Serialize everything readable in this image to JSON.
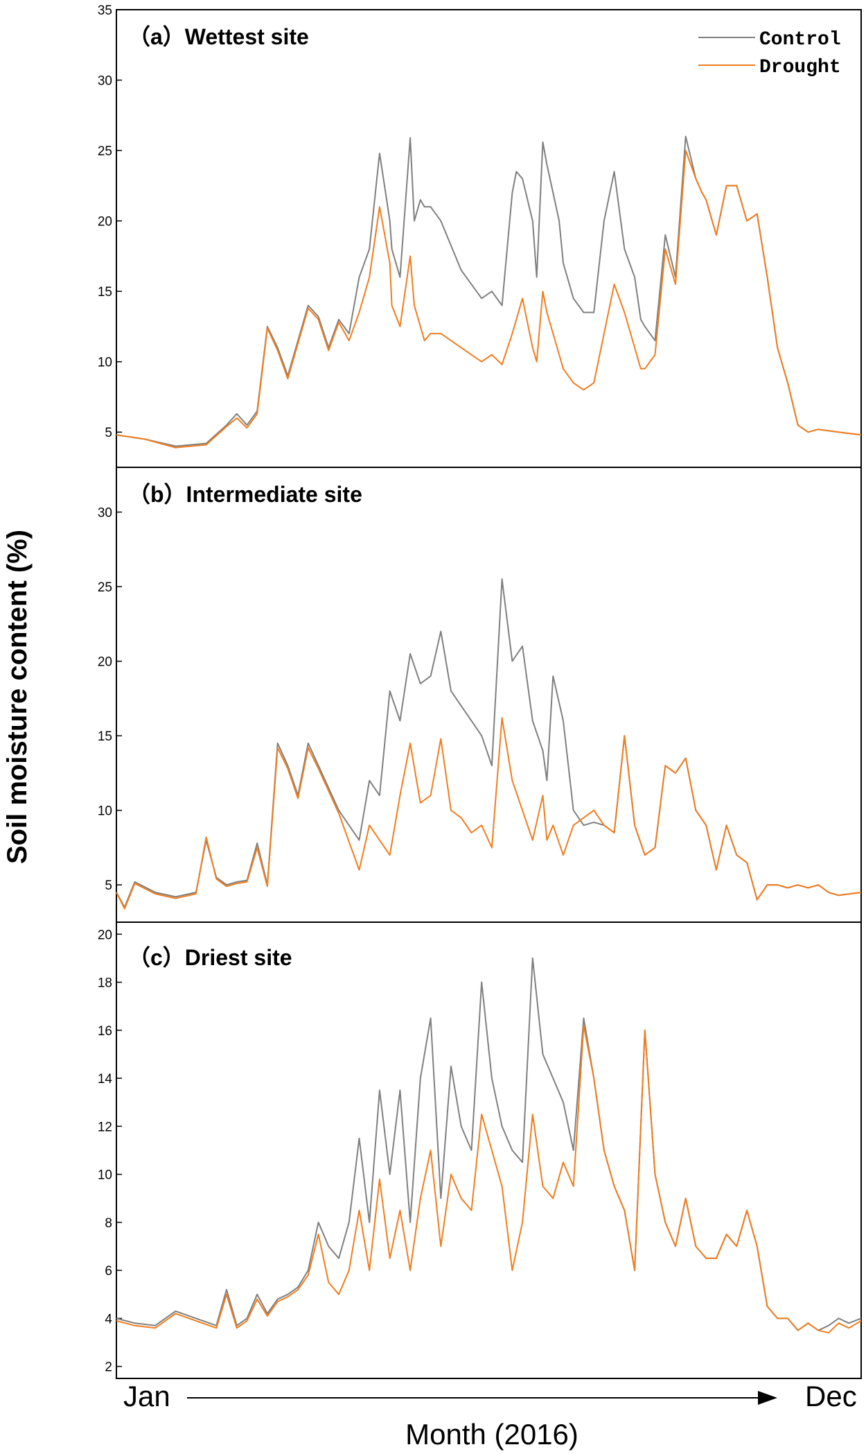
{
  "chart_data": {
    "type": "line",
    "ylabel": "Soil moisture content (%)",
    "xlabel": "Month (2016)",
    "x_start_label": "Jan",
    "x_end_label": "Dec",
    "xlim": [
      1,
      366
    ],
    "legend": {
      "placement": "top-right",
      "entries": [
        {
          "name": "Control",
          "color": "#7f7f7f"
        },
        {
          "name": "Drought",
          "color": "#f07d1e"
        }
      ]
    },
    "panels": [
      {
        "id": "a",
        "title": "（a）Wettest site",
        "ylim": [
          2.5,
          35
        ],
        "yticks": [
          5,
          10,
          15,
          20,
          25,
          30,
          35
        ],
        "series": [
          {
            "name": "Control",
            "x": [
              1,
              15,
              30,
              45,
              55,
              60,
              65,
              70,
              75,
              80,
              85,
              95,
              100,
              105,
              110,
              115,
              120,
              125,
              130,
              135,
              136,
              140,
              145,
              147,
              150,
              152,
              155,
              160,
              170,
              180,
              185,
              190,
              195,
              197,
              200,
              205,
              207,
              210,
              212,
              215,
              218,
              220,
              225,
              230,
              235,
              240,
              245,
              250,
              255,
              258,
              260,
              265,
              270,
              275,
              280,
              285,
              288,
              290,
              295,
              300,
              305,
              310,
              315,
              320,
              325,
              330,
              335,
              340,
              345,
              355,
              366
            ],
            "values": [
              4.8,
              4.5,
              4.0,
              4.2,
              5.5,
              6.3,
              5.5,
              6.5,
              12.5,
              11.0,
              9.0,
              14.0,
              13.2,
              11.0,
              13.0,
              12.0,
              16.0,
              18.0,
              24.8,
              20.0,
              18.0,
              16.0,
              25.9,
              20.0,
              21.5,
              21.0,
              21.0,
              20.0,
              16.5,
              14.5,
              15.0,
              14.0,
              22.0,
              23.5,
              23.0,
              20.0,
              16.0,
              25.6,
              24.0,
              22.0,
              20.0,
              17.0,
              14.5,
              13.5,
              13.5,
              20.0,
              23.5,
              18.0,
              16.0,
              13.0,
              12.5,
              11.5,
              19.0,
              16.0,
              26.0,
              23.0,
              22.0,
              21.5,
              19.0,
              22.5,
              22.5,
              20.0,
              20.5,
              16.0,
              11.0,
              8.5,
              5.5,
              5.0,
              5.2,
              5.0,
              4.8
            ]
          },
          {
            "name": "Drought",
            "values": [
              4.8,
              4.5,
              3.9,
              4.1,
              5.4,
              6.0,
              5.3,
              6.3,
              12.4,
              10.8,
              8.8,
              13.8,
              13.0,
              10.8,
              12.8,
              11.5,
              13.5,
              16.0,
              21.0,
              17.0,
              14.0,
              12.5,
              17.5,
              14.0,
              12.5,
              11.5,
              12.0,
              12.0,
              11.0,
              10.0,
              10.5,
              9.8,
              12.0,
              13.0,
              14.5,
              11.0,
              10.0,
              15.0,
              13.5,
              12.0,
              10.5,
              9.5,
              8.5,
              8.0,
              8.5,
              12.0,
              15.5,
              13.5,
              11.0,
              9.5,
              9.5,
              10.5,
              18.0,
              15.5,
              25.0,
              23.0,
              22.0,
              21.5,
              19.0,
              22.5,
              22.5,
              20.0,
              20.5,
              16.0,
              11.0,
              8.5,
              5.5,
              5.0,
              5.2,
              5.0,
              4.8
            ]
          }
        ]
      },
      {
        "id": "b",
        "title": "（b）Intermediate site",
        "ylim": [
          2.5,
          33
        ],
        "yticks": [
          5,
          10,
          15,
          20,
          25,
          30
        ],
        "series": [
          {
            "name": "Control",
            "x": [
              1,
              5,
              10,
              20,
              30,
              40,
              45,
              50,
              55,
              60,
              65,
              70,
              75,
              80,
              85,
              90,
              95,
              100,
              110,
              120,
              125,
              130,
              135,
              140,
              145,
              150,
              155,
              160,
              165,
              170,
              175,
              180,
              185,
              190,
              195,
              200,
              205,
              210,
              212,
              215,
              220,
              225,
              230,
              235,
              240,
              245,
              250,
              255,
              260,
              265,
              270,
              275,
              280,
              285,
              290,
              295,
              300,
              305,
              310,
              315,
              320,
              325,
              330,
              335,
              340,
              345,
              350,
              355,
              366
            ],
            "values": [
              4.5,
              3.5,
              5.2,
              4.5,
              4.2,
              4.5,
              8.0,
              5.5,
              5.0,
              5.2,
              5.3,
              7.8,
              5.0,
              14.5,
              13.0,
              11.0,
              14.5,
              13.0,
              10.0,
              8.0,
              12.0,
              11.0,
              18.0,
              16.0,
              20.5,
              18.5,
              19.0,
              22.0,
              18.0,
              17.0,
              16.0,
              15.0,
              13.0,
              25.5,
              20.0,
              21.0,
              16.0,
              14.0,
              12.0,
              19.0,
              16.0,
              10.0,
              9.0,
              9.2,
              9.0,
              8.5,
              15.0,
              9.0,
              7.0,
              7.5,
              13.0,
              12.5,
              13.5,
              10.0,
              9.0,
              6.0,
              9.0,
              7.0,
              6.5,
              4.0,
              5.0,
              5.0,
              4.8,
              5.0,
              4.8,
              5.0,
              4.5,
              4.3,
              4.5
            ]
          },
          {
            "name": "Drought",
            "values": [
              4.5,
              3.4,
              5.1,
              4.4,
              4.1,
              4.4,
              8.2,
              5.4,
              4.9,
              5.1,
              5.2,
              7.5,
              4.9,
              14.2,
              12.8,
              10.8,
              14.2,
              12.8,
              9.8,
              6.0,
              9.0,
              8.0,
              7.0,
              11.0,
              14.5,
              10.5,
              11.0,
              14.8,
              10.0,
              9.5,
              8.5,
              9.0,
              7.5,
              16.2,
              12.0,
              10.0,
              8.0,
              11.0,
              8.0,
              9.0,
              7.0,
              9.0,
              9.5,
              10.0,
              9.0,
              8.5,
              15.0,
              9.0,
              7.0,
              7.5,
              13.0,
              12.5,
              13.5,
              10.0,
              9.0,
              6.0,
              9.0,
              7.0,
              6.5,
              4.0,
              5.0,
              5.0,
              4.8,
              5.0,
              4.8,
              5.0,
              4.5,
              4.3,
              4.5
            ]
          }
        ]
      },
      {
        "id": "c",
        "title": "（c）Driest site",
        "ylim": [
          1.5,
          20.5
        ],
        "yticks": [
          2,
          4,
          6,
          8,
          10,
          12,
          14,
          16,
          18,
          20
        ],
        "series": [
          {
            "name": "Control",
            "x": [
              1,
              10,
              20,
              30,
              40,
              50,
              55,
              60,
              65,
              70,
              75,
              80,
              85,
              90,
              95,
              100,
              105,
              110,
              115,
              120,
              125,
              130,
              135,
              140,
              145,
              150,
              155,
              160,
              165,
              170,
              175,
              180,
              185,
              190,
              195,
              200,
              205,
              210,
              215,
              220,
              225,
              230,
              235,
              240,
              245,
              250,
              255,
              260,
              265,
              270,
              275,
              280,
              285,
              290,
              295,
              300,
              305,
              310,
              315,
              320,
              325,
              330,
              335,
              340,
              345,
              350,
              355,
              360,
              366
            ],
            "values": [
              4.0,
              3.8,
              3.7,
              4.3,
              4.0,
              3.7,
              5.2,
              3.7,
              4.0,
              5.0,
              4.2,
              4.8,
              5.0,
              5.3,
              6.0,
              8.0,
              7.0,
              6.5,
              8.0,
              11.5,
              8.0,
              13.5,
              10.0,
              13.5,
              8.0,
              14.0,
              16.5,
              9.0,
              14.5,
              12.0,
              11.0,
              18.0,
              14.0,
              12.0,
              11.0,
              10.5,
              19.0,
              15.0,
              14.0,
              13.0,
              11.0,
              16.5,
              14.0,
              11.0,
              9.5,
              8.5,
              6.0,
              16.0,
              10.0,
              8.0,
              7.0,
              9.0,
              7.0,
              6.5,
              6.5,
              7.5,
              7.0,
              8.5,
              7.0,
              4.5,
              4.0,
              4.0,
              3.5,
              3.8,
              3.5,
              3.7,
              4.0,
              3.8,
              4.0
            ]
          },
          {
            "name": "Drought",
            "values": [
              3.9,
              3.7,
              3.6,
              4.2,
              3.9,
              3.6,
              5.0,
              3.6,
              3.9,
              4.8,
              4.1,
              4.7,
              4.9,
              5.2,
              5.8,
              7.5,
              5.5,
              5.0,
              6.0,
              8.5,
              6.0,
              9.8,
              6.5,
              8.5,
              6.0,
              9.0,
              11.0,
              7.0,
              10.0,
              9.0,
              8.5,
              12.5,
              11.0,
              9.5,
              6.0,
              8.0,
              12.5,
              9.5,
              9.0,
              10.5,
              9.5,
              16.2,
              14.0,
              11.0,
              9.5,
              8.5,
              6.0,
              16.0,
              10.0,
              8.0,
              7.0,
              9.0,
              7.0,
              6.5,
              6.5,
              7.5,
              7.0,
              8.5,
              7.0,
              4.5,
              4.0,
              4.0,
              3.5,
              3.8,
              3.5,
              3.4,
              3.8,
              3.6,
              3.9
            ]
          }
        ]
      }
    ]
  }
}
